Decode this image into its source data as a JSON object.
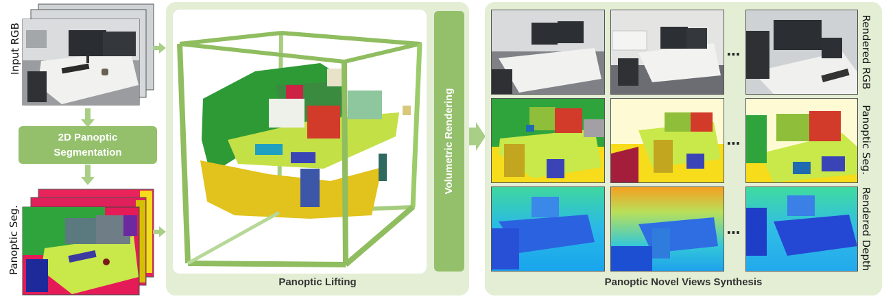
{
  "left": {
    "input_label": "Input RGB",
    "segmentation_box": "2D Panoptic Segmentation",
    "seg_label": "Panoptic Seg."
  },
  "middle": {
    "caption": "Panoptic Lifting",
    "vr_label": "Volumetric Rendering"
  },
  "right": {
    "caption": "Panoptic Novel Views Synthesis",
    "row_labels": [
      "Rendered RGB",
      "Panoptic Seg.",
      "Rendered Depth"
    ],
    "ellipsis": "..."
  },
  "colors": {
    "panel_bg": "#e3eed5",
    "accent_green": "#94c06c",
    "arrow_green": "#a9cf86"
  }
}
